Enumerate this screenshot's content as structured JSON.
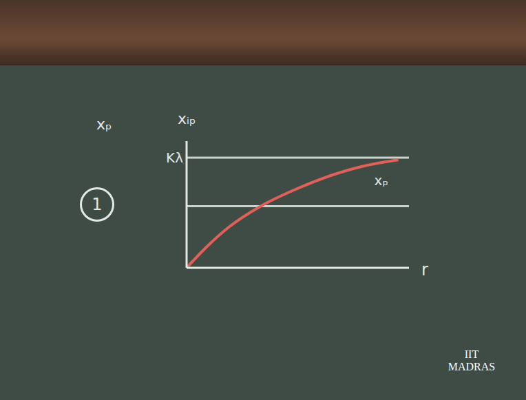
{
  "chart_data": {
    "type": "line",
    "x_label": "r",
    "y_label": "xᵢₚ",
    "x": [
      0,
      0.1,
      0.2,
      0.35,
      0.5,
      0.7,
      0.85,
      1.0
    ],
    "values": [
      0,
      0.2,
      0.37,
      0.56,
      0.7,
      0.85,
      0.93,
      0.98
    ],
    "color": "#e0605a",
    "xlim": [
      0,
      1.05
    ],
    "ylim": [
      0,
      1.15
    ],
    "xticks": [],
    "yticks": [],
    "tick_labels": false,
    "grid": false,
    "reference_lines": [
      {
        "label": "Kλ",
        "value": 1,
        "color": "#c9d2cc"
      },
      {
        "label": "xₚ",
        "value": 0.56,
        "color": "#c9d2cc"
      }
    ],
    "annotations": [
      "xₚ",
      "1"
    ],
    "watermark": "IIT MADRAS"
  }
}
